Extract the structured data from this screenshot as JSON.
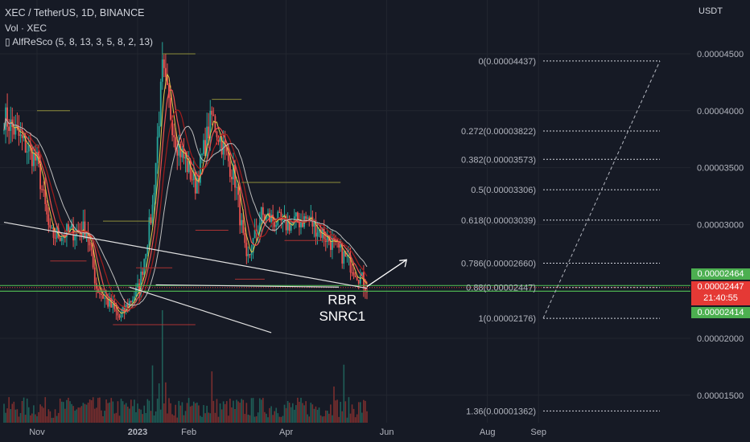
{
  "header": {
    "symbol": "XEC / TetherUS, 1D, BINANCE",
    "volume": "Vol · XEC",
    "indicator": "AlfReSco (5, 8, 13, 3, 5, 8, 2, 13)"
  },
  "axis": {
    "unit": "USDT"
  },
  "annotations": {
    "pattern": "RBR",
    "tag": "SNRC1"
  },
  "price_tags": {
    "upper": "0.00002464",
    "last": "0.00002447",
    "countdown": "21:40:55",
    "lower": "0.00002414"
  },
  "colors": {
    "background": "#161a25",
    "up": "#26a69a",
    "down": "#ef5350",
    "tag_green": "#4caf50",
    "tag_red": "#e53935",
    "fib": "#d1d4dc",
    "zone_green": "#4caf50"
  },
  "chart_data": {
    "type": "candlestick",
    "title": "XEC / TetherUS, 1D, BINANCE",
    "ylabel": "USDT",
    "y_ticks": [
      "0.00004500",
      "0.00004000",
      "0.00003500",
      "0.00003000",
      "0.00002000",
      "0.00001500"
    ],
    "x_ticks": [
      "Nov",
      "2023",
      "Feb",
      "Apr",
      "Jun",
      "Aug",
      "Sep"
    ],
    "ylim": [
      1.23e-05,
      4.75e-05
    ],
    "fib_levels": [
      {
        "label": "0(0.00004437)",
        "value": 4.437e-05
      },
      {
        "label": "0.272(0.00003822)",
        "value": 3.822e-05
      },
      {
        "label": "0.382(0.00003573)",
        "value": 3.573e-05
      },
      {
        "label": "0.5(0.00003306)",
        "value": 3.306e-05
      },
      {
        "label": "0.618(0.00003039)",
        "value": 3.039e-05
      },
      {
        "label": "0.786(0.00002660)",
        "value": 2.66e-05
      },
      {
        "label": "0.88(0.00002447)",
        "value": 2.447e-05
      },
      {
        "label": "1(0.00002176)",
        "value": 2.176e-05
      },
      {
        "label": "1.36(0.00001362)",
        "value": 1.362e-05
      }
    ],
    "support_zone": [
      2.414e-05,
      2.464e-05
    ],
    "last_price": 2.447e-05,
    "approx_close_path": [
      {
        "x": "Oct",
        "y": 3.95e-05
      },
      {
        "x": "Nov",
        "y": 3.55e-05
      },
      {
        "x": "Nov",
        "y": 2.9e-05
      },
      {
        "x": "Dec",
        "y": 2.96e-05
      },
      {
        "x": "Dec",
        "y": 2.45e-05
      },
      {
        "x": "Dec",
        "y": 2.18e-05
      },
      {
        "x": "2023",
        "y": 2.45e-05
      },
      {
        "x": "Jan",
        "y": 3.15e-05
      },
      {
        "x": "Jan",
        "y": 4.35e-05
      },
      {
        "x": "Feb",
        "y": 3.75e-05
      },
      {
        "x": "Feb",
        "y": 3.35e-05
      },
      {
        "x": "Feb",
        "y": 3.95e-05
      },
      {
        "x": "Mar",
        "y": 3.4e-05
      },
      {
        "x": "Mar",
        "y": 2.65e-05
      },
      {
        "x": "Mar",
        "y": 3.08e-05
      },
      {
        "x": "Apr",
        "y": 3e-05
      },
      {
        "x": "Apr",
        "y": 3.05e-05
      },
      {
        "x": "May",
        "y": 2.85e-05
      },
      {
        "x": "May",
        "y": 2.62e-05
      },
      {
        "x": "May",
        "y": 2.45e-05
      }
    ]
  }
}
